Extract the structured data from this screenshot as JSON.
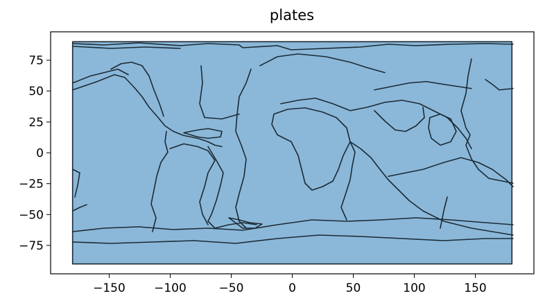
{
  "title": "plates",
  "colors": {
    "fill": "#8bb8d9",
    "boundary": "#1c2a35",
    "frame": "#000000",
    "background": "#ffffff"
  },
  "chart_data": {
    "type": "map",
    "title": "plates",
    "xlabel": "",
    "ylabel": "",
    "xlim": [
      -198,
      198
    ],
    "ylim": [
      -98,
      98
    ],
    "x_ticks": [
      -150,
      -100,
      -50,
      0,
      50,
      100,
      150
    ],
    "y_ticks": [
      75,
      50,
      25,
      0,
      -25,
      -50,
      -75
    ],
    "x_tick_labels": [
      "−150",
      "−100",
      "−50",
      "0",
      "50",
      "100",
      "150"
    ],
    "y_tick_labels": [
      "75",
      "50",
      "25",
      "0",
      "−25",
      "−50",
      "−75"
    ],
    "extent": {
      "lon": [
        -180,
        180
      ],
      "lat": [
        -90,
        90
      ]
    },
    "grid": false,
    "legend": "none"
  }
}
